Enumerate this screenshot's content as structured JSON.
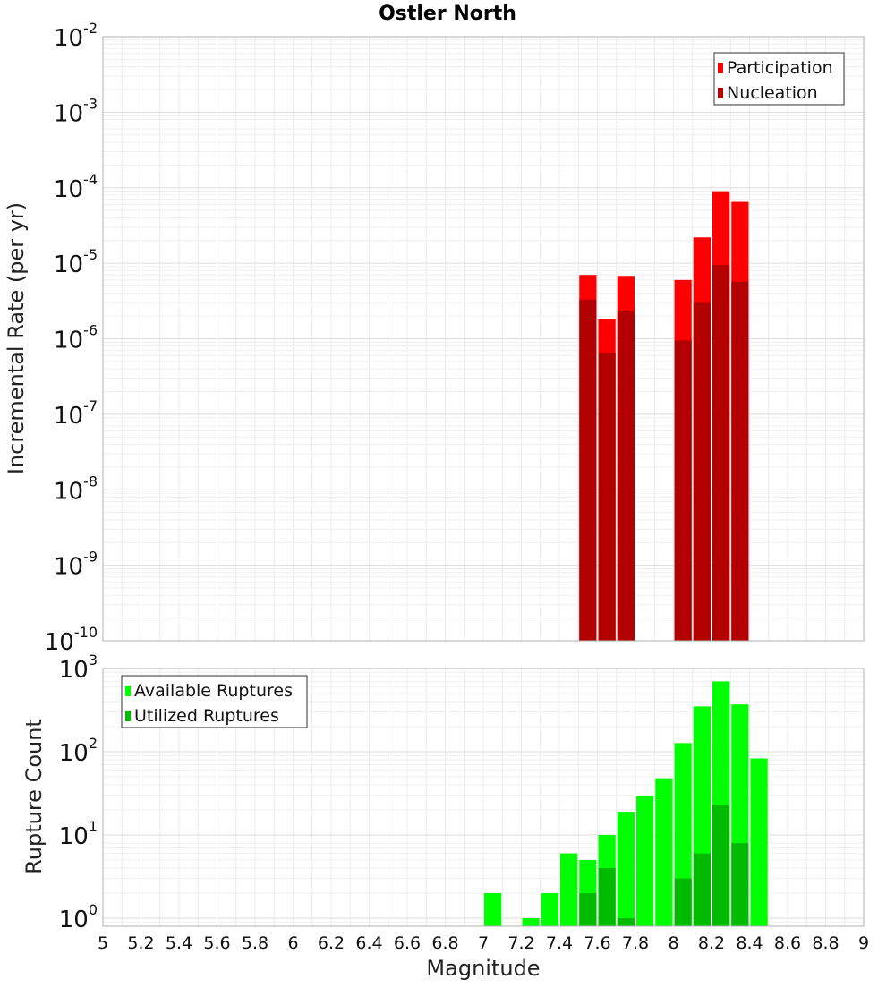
{
  "chart_data": [
    {
      "type": "bar",
      "title": "Ostler North",
      "ylabel": "Incremental Rate (per yr)",
      "xlabel": "",
      "y_scale": "log",
      "ylim": [
        1e-10,
        0.01
      ],
      "xlim": [
        5,
        9
      ],
      "y_ticks": [
        {
          "base": "10",
          "exp": "-10",
          "value": 1e-10
        },
        {
          "base": "10",
          "exp": "-9",
          "value": 1e-09
        },
        {
          "base": "10",
          "exp": "-8",
          "value": 1e-08
        },
        {
          "base": "10",
          "exp": "-7",
          "value": 1e-07
        },
        {
          "base": "10",
          "exp": "-6",
          "value": 1e-06
        },
        {
          "base": "10",
          "exp": "-5",
          "value": 1e-05
        },
        {
          "base": "10",
          "exp": "-4",
          "value": 0.0001
        },
        {
          "base": "10",
          "exp": "-3",
          "value": 0.001
        },
        {
          "base": "10",
          "exp": "-2",
          "value": 0.01
        }
      ],
      "legend_position": "top-right",
      "grid": true,
      "bar_width_magnitude": 0.1,
      "series": [
        {
          "name": "Participation",
          "color": "#ff0000",
          "points": [
            {
              "x": 7.55,
              "y": 7e-06
            },
            {
              "x": 7.65,
              "y": 1.8e-06
            },
            {
              "x": 7.75,
              "y": 6.8e-06
            },
            {
              "x": 8.05,
              "y": 6e-06
            },
            {
              "x": 8.15,
              "y": 2.2e-05
            },
            {
              "x": 8.25,
              "y": 9e-05
            },
            {
              "x": 8.35,
              "y": 6.5e-05
            }
          ]
        },
        {
          "name": "Nucleation",
          "color": "#b30000",
          "points": [
            {
              "x": 7.55,
              "y": 3.3e-06
            },
            {
              "x": 7.65,
              "y": 6.5e-07
            },
            {
              "x": 7.75,
              "y": 2.3e-06
            },
            {
              "x": 8.05,
              "y": 9.5e-07
            },
            {
              "x": 8.15,
              "y": 3e-06
            },
            {
              "x": 8.25,
              "y": 9.5e-06
            },
            {
              "x": 8.35,
              "y": 5.7e-06
            }
          ]
        }
      ]
    },
    {
      "type": "bar",
      "title": "",
      "ylabel": "Rupture Count",
      "xlabel": "Magnitude",
      "y_scale": "log",
      "ylim": [
        0.8,
        1000
      ],
      "xlim": [
        5,
        9
      ],
      "y_ticks": [
        {
          "base": "10",
          "exp": "0",
          "value": 1
        },
        {
          "base": "10",
          "exp": "1",
          "value": 10
        },
        {
          "base": "10",
          "exp": "2",
          "value": 100
        },
        {
          "base": "10",
          "exp": "3",
          "value": 1000
        }
      ],
      "x_tick_labels": [
        "5",
        "5.2",
        "5.4",
        "5.6",
        "5.8",
        "6",
        "6.2",
        "6.4",
        "6.6",
        "6.8",
        "7",
        "7.2",
        "7.4",
        "7.6",
        "7.8",
        "8",
        "8.2",
        "8.4",
        "8.6",
        "8.8",
        "9"
      ],
      "legend_position": "top-left",
      "grid": true,
      "bar_width_magnitude": 0.1,
      "series": [
        {
          "name": "Available Ruptures",
          "color": "#00ff00",
          "points": [
            {
              "x": 7.05,
              "y": 2
            },
            {
              "x": 7.25,
              "y": 1
            },
            {
              "x": 7.35,
              "y": 2
            },
            {
              "x": 7.45,
              "y": 6
            },
            {
              "x": 7.55,
              "y": 5
            },
            {
              "x": 7.65,
              "y": 10
            },
            {
              "x": 7.75,
              "y": 19
            },
            {
              "x": 7.85,
              "y": 29
            },
            {
              "x": 7.95,
              "y": 48
            },
            {
              "x": 8.05,
              "y": 127
            },
            {
              "x": 8.15,
              "y": 350
            },
            {
              "x": 8.25,
              "y": 700
            },
            {
              "x": 8.35,
              "y": 370
            },
            {
              "x": 8.45,
              "y": 83
            }
          ]
        },
        {
          "name": "Utilized Ruptures",
          "color": "#00bb00",
          "points": [
            {
              "x": 7.55,
              "y": 2
            },
            {
              "x": 7.65,
              "y": 4
            },
            {
              "x": 7.75,
              "y": 1
            },
            {
              "x": 8.05,
              "y": 3
            },
            {
              "x": 8.15,
              "y": 6
            },
            {
              "x": 8.25,
              "y": 23
            },
            {
              "x": 8.35,
              "y": 8
            }
          ]
        }
      ]
    }
  ]
}
